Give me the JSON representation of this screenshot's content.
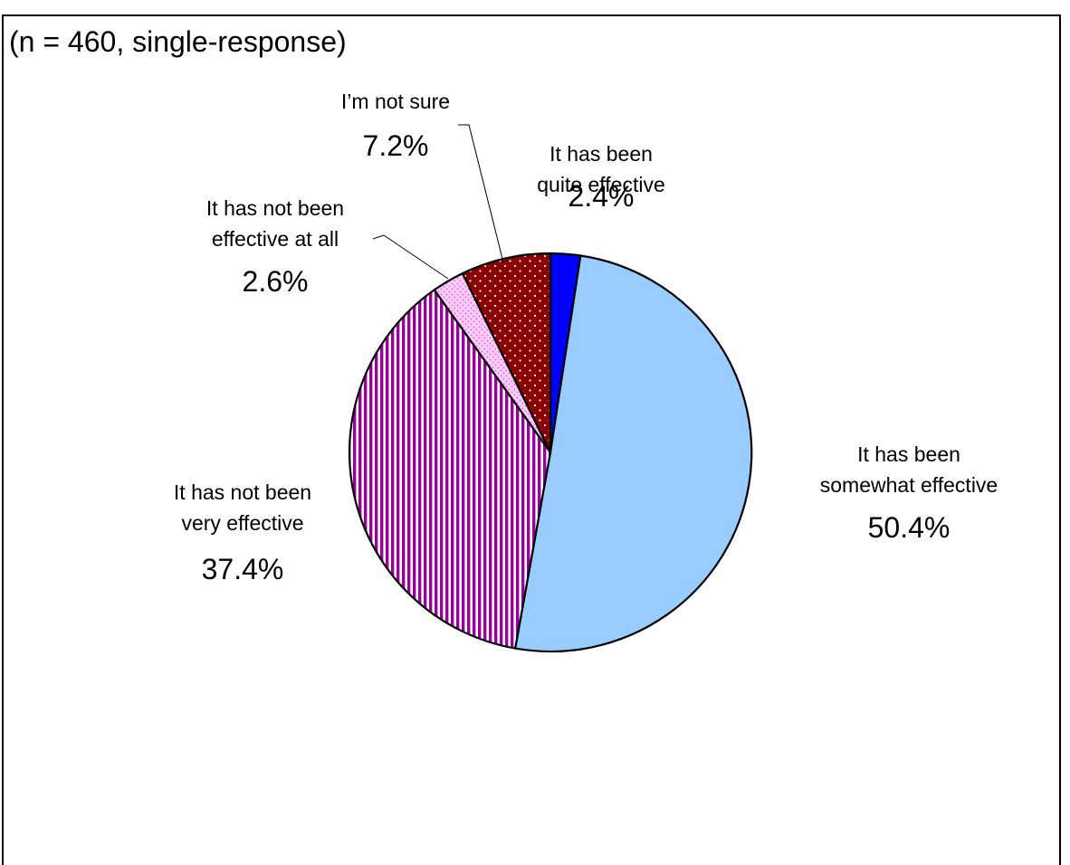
{
  "subtitle": "(n = 460, single-response)",
  "chart_data": {
    "type": "pie",
    "title": "",
    "slices": [
      {
        "label_lines": [
          "It has been",
          "quite effective"
        ],
        "label": "It has been quite effective",
        "value": 2.4,
        "pct_text": "2.4%",
        "color": "#0000ff",
        "pattern": "solid"
      },
      {
        "label_lines": [
          "It has been",
          "somewhat effective"
        ],
        "label": "It has been somewhat effective",
        "value": 50.4,
        "pct_text": "50.4%",
        "color": "#99ccff",
        "pattern": "solid"
      },
      {
        "label_lines": [
          "It has not been",
          "very effective"
        ],
        "label": "It has not been very effective",
        "value": 37.4,
        "pct_text": "37.4%",
        "color": "#990099",
        "pattern": "vertical-stripes"
      },
      {
        "label_lines": [
          "It has not been",
          "effective at all"
        ],
        "label": "It has not been effective at all",
        "value": 2.6,
        "pct_text": "2.6%",
        "color": "#ffccff",
        "pattern": "dots"
      },
      {
        "label_lines": [
          "I’m not sure"
        ],
        "label": "I’m not sure",
        "value": 7.2,
        "pct_text": "7.2%",
        "color": "#8b0000",
        "pattern": "dots"
      }
    ],
    "start_angle": "12 o'clock",
    "direction": "clockwise",
    "legend": "none"
  }
}
